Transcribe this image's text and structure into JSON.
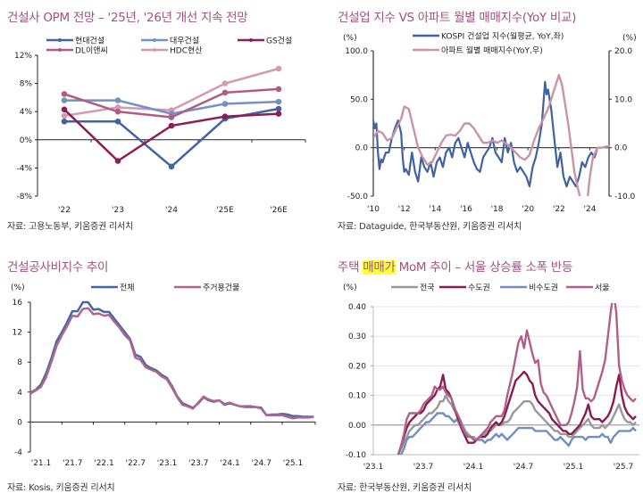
{
  "panels": [
    {
      "title": "건설사 OPM 전망 – '25년, '26년 개선 지속 전망",
      "source": "자료: 고용노동부, 키움증권 리서치"
    },
    {
      "title": "건설업 지수 VS 아파트 월별 매매지수(YoY 비교)",
      "source": "자료: Dataguide, 한국부동산원, 키움증권 리서치"
    },
    {
      "title": "건설공사비지수 추이",
      "source": "자료: Kosis, 키움증권 리서치"
    },
    {
      "title_pre": "주택 ",
      "title_hl": "매매가",
      "title_post": " MoM 추이 – 서울 상승률 소폭 반등",
      "source": "자료: 한국부동산원, 키움증권 리서치"
    }
  ],
  "chart_data": [
    {
      "type": "line",
      "title": "건설사 OPM 전망 – '25년, '26년 개선 지속 전망",
      "categories": [
        "'22",
        "'23",
        "'24",
        "'25E",
        "'26E"
      ],
      "yticks": [
        "12%",
        "8%",
        "4%",
        "0%",
        "-4%",
        "-8%"
      ],
      "ylim": [
        -8,
        12
      ],
      "legend": "top",
      "series": [
        {
          "name": "현대건설",
          "color": "#3f63a3",
          "values": [
            2.6,
            2.6,
            -3.8,
            3.0,
            4.4
          ]
        },
        {
          "name": "대우건설",
          "color": "#7391c2",
          "values": [
            5.6,
            5.6,
            3.7,
            5.1,
            5.4
          ]
        },
        {
          "name": "GS건설",
          "color": "#8b1e52",
          "values": [
            4.3,
            -3.0,
            2.0,
            3.3,
            3.7
          ]
        },
        {
          "name": "DL이앤씨",
          "color": "#b05c84",
          "values": [
            6.5,
            4.0,
            3.2,
            6.7,
            7.2
          ]
        },
        {
          "name": "HDC현산",
          "color": "#d39ab2",
          "values": [
            3.4,
            4.6,
            4.2,
            8.0,
            10.1
          ]
        }
      ]
    },
    {
      "type": "line",
      "title": "건설업 지수 VS 아파트 월별 매매지수(YoY 비교)",
      "y_unit_left": "(%)",
      "y_unit_right": "(%)",
      "yticks_left": [
        "100.0",
        "50.0",
        "0.0",
        "-50.0"
      ],
      "yticks_right": [
        "20.0",
        "10.0",
        "0.0",
        "-10.0"
      ],
      "ylim_left": [
        -50,
        100
      ],
      "ylim_right": [
        -10,
        20
      ],
      "xticks": [
        "'10",
        "'12",
        "'14",
        "'16",
        "'18",
        "'20",
        "'22",
        "'24"
      ],
      "x_range": [
        2010,
        2025.3
      ],
      "legend": "top",
      "series": [
        {
          "name": "KOSPI 건설업 지수(월평균, YoY,좌)",
          "axis": "left",
          "color": "#4062a1",
          "x": [
            2010.0,
            2010.1,
            2010.2,
            2010.3,
            2010.4,
            2010.5,
            2010.6,
            2010.8,
            2011.0,
            2011.2,
            2011.4,
            2011.6,
            2011.8,
            2011.9,
            2012.0,
            2012.1,
            2012.3,
            2012.5,
            2012.7,
            2012.9,
            2013.1,
            2013.3,
            2013.5,
            2013.7,
            2013.9,
            2014.1,
            2014.3,
            2014.5,
            2014.7,
            2014.9,
            2015.1,
            2015.3,
            2015.5,
            2015.7,
            2015.9,
            2016.1,
            2016.3,
            2016.5,
            2016.7,
            2016.9,
            2017.1,
            2017.3,
            2017.5,
            2017.7,
            2017.9,
            2018.1,
            2018.3,
            2018.5,
            2018.7,
            2018.9,
            2019.1,
            2019.3,
            2019.5,
            2019.7,
            2019.9,
            2020.1,
            2020.3,
            2020.5,
            2020.7,
            2020.9,
            2021.1,
            2021.2,
            2021.3,
            2021.5,
            2021.7,
            2021.9,
            2022.1,
            2022.3,
            2022.5,
            2022.7,
            2022.9,
            2023.1,
            2023.3,
            2023.5,
            2023.7,
            2023.9,
            2024.1,
            2024.3,
            2024.5,
            2024.7
          ],
          "values": [
            28,
            20,
            25,
            -5,
            -22,
            -12,
            -15,
            -5,
            -5,
            10,
            20,
            28,
            15,
            -10,
            -25,
            -22,
            -28,
            -5,
            -25,
            -35,
            -10,
            -20,
            -25,
            -15,
            -30,
            -15,
            -10,
            -20,
            -5,
            0,
            -10,
            5,
            10,
            0,
            -10,
            5,
            -5,
            -15,
            -22,
            -25,
            -10,
            -5,
            0,
            10,
            -5,
            -10,
            -15,
            10,
            -5,
            5,
            -15,
            -25,
            -20,
            -25,
            -30,
            -40,
            -20,
            -10,
            5,
            25,
            68,
            55,
            60,
            40,
            10,
            -20,
            -5,
            -30,
            -40,
            -30,
            -35,
            -40,
            -30,
            -15,
            -20,
            -10,
            -5,
            -10,
            0,
            0
          ]
        },
        {
          "name": "아파트 월별 매매지수(YoY,우)",
          "axis": "right",
          "color": "#c993a8",
          "x": [
            2010.0,
            2010.3,
            2010.6,
            2010.9,
            2011.2,
            2011.5,
            2011.8,
            2012.0,
            2012.3,
            2012.6,
            2012.9,
            2013.2,
            2013.5,
            2013.8,
            2014.1,
            2014.4,
            2014.7,
            2015.0,
            2015.3,
            2015.6,
            2015.9,
            2016.2,
            2016.5,
            2016.8,
            2017.1,
            2017.4,
            2017.7,
            2018.0,
            2018.3,
            2018.6,
            2018.9,
            2019.2,
            2019.5,
            2019.8,
            2020.1,
            2020.4,
            2020.7,
            2021.0,
            2021.3,
            2021.6,
            2021.9,
            2022.0,
            2022.2,
            2022.4,
            2022.6,
            2022.8,
            2023.0,
            2023.2,
            2023.5,
            2023.8,
            2024.0,
            2024.2,
            2024.5,
            2024.8,
            2025.0,
            2025.3
          ],
          "values": [
            2,
            3.5,
            3,
            1.5,
            2,
            4,
            6,
            8.5,
            8,
            4,
            0,
            -2,
            -3.5,
            -3,
            -1,
            1,
            2.5,
            2.7,
            2.5,
            3.5,
            5,
            5,
            4,
            2.5,
            1,
            1,
            1.5,
            1,
            1.5,
            0.8,
            0,
            -1,
            -2,
            -2.5,
            -1.5,
            1.5,
            4,
            6,
            8,
            11,
            14,
            15,
            13,
            9,
            5,
            0,
            -5,
            -8,
            -12,
            -12,
            -6,
            -2,
            0,
            0,
            0.2,
            0.3
          ]
        }
      ]
    },
    {
      "type": "line",
      "title": "건설공사비지수 추이",
      "y_unit": "(%)",
      "yticks": [
        "16",
        "12",
        "8",
        "4",
        "0",
        "-4"
      ],
      "ylim": [
        -4,
        16
      ],
      "xticks": [
        "'21.1",
        "'21.7",
        "'22.1",
        "'22.7",
        "'23.1",
        "'23.7",
        "'24.1",
        "'24.7",
        "'25.1"
      ],
      "legend": "top",
      "series": [
        {
          "name": "전체",
          "color": "#4766a4",
          "values": [
            3.9,
            4.3,
            5.0,
            6.5,
            8.5,
            10.8,
            12.0,
            13.3,
            14.8,
            14.8,
            16.0,
            16.0,
            15.0,
            15.1,
            14.7,
            14.7,
            13.8,
            12.9,
            12.0,
            11.1,
            9.0,
            8.7,
            7.6,
            7.2,
            6.9,
            6.3,
            5.9,
            4.8,
            3.4,
            2.5,
            2.2,
            1.9,
            2.5,
            3.3,
            2.9,
            2.7,
            2.9,
            2.3,
            2.5,
            2.3,
            2.1,
            2.1,
            2.1,
            2.0,
            1.9,
            0.9,
            1.0,
            1.0,
            1.1,
            1.0,
            0.8,
            0.8,
            0.7,
            0.7,
            0.7
          ]
        },
        {
          "name": "주거용건물",
          "color": "#b0668a",
          "values": [
            3.8,
            4.2,
            4.7,
            6.0,
            8.0,
            10.2,
            11.6,
            12.8,
            14.2,
            14.1,
            15.1,
            15.2,
            14.4,
            14.5,
            14.2,
            14.3,
            13.4,
            12.6,
            11.6,
            10.9,
            8.6,
            8.3,
            7.3,
            7.0,
            6.7,
            6.1,
            5.7,
            4.6,
            3.3,
            2.3,
            2.1,
            1.8,
            2.6,
            3.4,
            3.0,
            2.8,
            2.9,
            2.4,
            2.6,
            2.3,
            2.1,
            2.0,
            2.0,
            2.0,
            1.8,
            0.9,
            0.9,
            0.9,
            0.9,
            0.7,
            0.5,
            0.6,
            0.6,
            0.6,
            0.7
          ]
        }
      ]
    },
    {
      "type": "line",
      "title": "주택 매매가 MoM 추이 – 서울 상승률 소폭 반등",
      "y_unit": "(%)",
      "yticks": [
        "0.40",
        "0.30",
        "0.20",
        "0.10",
        "0.00",
        "-0.10"
      ],
      "ylim": [
        -0.1,
        0.4
      ],
      "xticks": [
        "'23.1",
        "'23.7",
        "'24.1",
        "'24.7",
        "'25.1",
        "'25.7"
      ],
      "grid": true,
      "legend": "top",
      "x_weeks_start": 13,
      "series": [
        {
          "name": "전국",
          "color": "#999999",
          "values": [
            -0.1,
            -0.08,
            -0.06,
            -0.04,
            -0.02,
            -0.01,
            0.0,
            0.0,
            0.01,
            0.02,
            0.03,
            0.04,
            0.04,
            0.05,
            0.06,
            0.08,
            0.08,
            0.1,
            0.08,
            0.07,
            0.05,
            0.04,
            0.02,
            0.0,
            -0.02,
            -0.03,
            -0.04,
            -0.04,
            -0.05,
            -0.04,
            -0.04,
            -0.03,
            -0.02,
            -0.02,
            -0.01,
            0.0,
            0.0,
            0.0,
            0.01,
            0.01,
            0.02,
            0.04,
            0.05,
            0.06,
            0.07,
            0.08,
            0.08,
            0.08,
            0.07,
            0.05,
            0.04,
            0.03,
            0.02,
            0.01,
            0.0,
            -0.01,
            -0.02,
            -0.02,
            -0.03,
            -0.03,
            -0.03,
            -0.04,
            -0.04,
            -0.03,
            -0.02,
            -0.01,
            0.0,
            0.01,
            0.02,
            0.0,
            -0.01,
            -0.01,
            -0.01,
            0.0,
            -0.01,
            0.0,
            0.01,
            0.03,
            0.05,
            0.07,
            0.04,
            0.02,
            0.01,
            0.01,
            0.0,
            0.01
          ]
        },
        {
          "name": "수도권",
          "color": "#8a1d50",
          "values": [
            -0.1,
            -0.07,
            -0.04,
            -0.01,
            0.01,
            0.02,
            0.03,
            0.04,
            0.04,
            0.05,
            0.07,
            0.08,
            0.09,
            0.1,
            0.12,
            0.13,
            0.17,
            0.12,
            0.11,
            0.09,
            0.06,
            0.03,
            0.01,
            -0.02,
            -0.04,
            -0.06,
            -0.06,
            -0.06,
            -0.05,
            -0.04,
            -0.04,
            -0.04,
            -0.03,
            -0.01,
            0.0,
            0.01,
            0.0,
            0.01,
            0.03,
            0.06,
            0.09,
            0.12,
            0.15,
            0.16,
            0.17,
            0.18,
            0.17,
            0.15,
            0.14,
            0.1,
            0.08,
            0.07,
            0.06,
            0.05,
            0.04,
            0.02,
            0.01,
            0.0,
            -0.01,
            -0.02,
            -0.02,
            -0.03,
            -0.03,
            -0.02,
            -0.01,
            0.0,
            0.02,
            0.04,
            0.07,
            0.03,
            0.02,
            0.02,
            0.02,
            0.01,
            0.02,
            0.03,
            0.05,
            0.08,
            0.13,
            0.17,
            0.1,
            0.06,
            0.04,
            0.03,
            0.02,
            0.03
          ]
        },
        {
          "name": "비수도권",
          "color": "#6f8fc0",
          "values": [
            -0.11,
            -0.1,
            -0.08,
            -0.05,
            -0.04,
            -0.04,
            -0.03,
            -0.02,
            -0.01,
            0.0,
            0.01,
            0.01,
            0.02,
            0.03,
            0.04,
            0.04,
            0.04,
            0.03,
            0.03,
            0.02,
            0.01,
            0.02,
            0.0,
            -0.02,
            -0.03,
            -0.04,
            -0.04,
            -0.05,
            -0.05,
            -0.05,
            -0.05,
            -0.06,
            -0.05,
            -0.05,
            -0.04,
            -0.03,
            -0.04,
            -0.03,
            -0.04,
            -0.05,
            -0.04,
            -0.03,
            -0.02,
            -0.01,
            -0.01,
            -0.01,
            -0.01,
            -0.01,
            -0.01,
            -0.02,
            -0.02,
            -0.02,
            -0.02,
            -0.02,
            -0.03,
            -0.04,
            -0.05,
            -0.05,
            -0.04,
            -0.05,
            -0.06,
            -0.07,
            -0.05,
            -0.04,
            -0.04,
            -0.04,
            -0.04,
            -0.05,
            -0.04,
            -0.04,
            -0.04,
            -0.04,
            -0.04,
            -0.03,
            -0.04,
            -0.04,
            -0.06,
            -0.04,
            -0.03,
            -0.02,
            -0.02,
            -0.02,
            -0.02,
            -0.02,
            -0.01,
            -0.02
          ]
        },
        {
          "name": "서울",
          "color": "#b0608a",
          "values": [
            -0.1,
            -0.07,
            -0.03,
            0.02,
            0.04,
            0.04,
            0.04,
            0.04,
            0.05,
            0.07,
            0.08,
            0.09,
            0.1,
            0.13,
            0.12,
            0.12,
            0.13,
            0.11,
            0.1,
            0.09,
            0.06,
            0.04,
            0.02,
            -0.01,
            -0.03,
            -0.04,
            -0.04,
            -0.05,
            -0.05,
            -0.04,
            -0.03,
            -0.02,
            -0.01,
            0.01,
            0.02,
            0.03,
            0.03,
            0.03,
            0.05,
            0.1,
            0.14,
            0.18,
            0.23,
            0.28,
            0.3,
            0.26,
            0.32,
            0.28,
            0.24,
            0.21,
            0.22,
            0.14,
            0.11,
            0.1,
            0.08,
            0.06,
            0.04,
            0.02,
            0.0,
            0.0,
            0.0,
            0.01,
            0.04,
            0.08,
            0.13,
            0.25,
            0.12,
            0.09,
            0.09,
            0.08,
            0.09,
            0.12,
            0.15,
            0.18,
            0.22,
            0.3,
            0.38,
            0.45,
            0.38,
            0.2,
            0.15,
            0.12,
            0.1,
            0.09,
            0.08,
            0.09
          ]
        }
      ]
    }
  ]
}
